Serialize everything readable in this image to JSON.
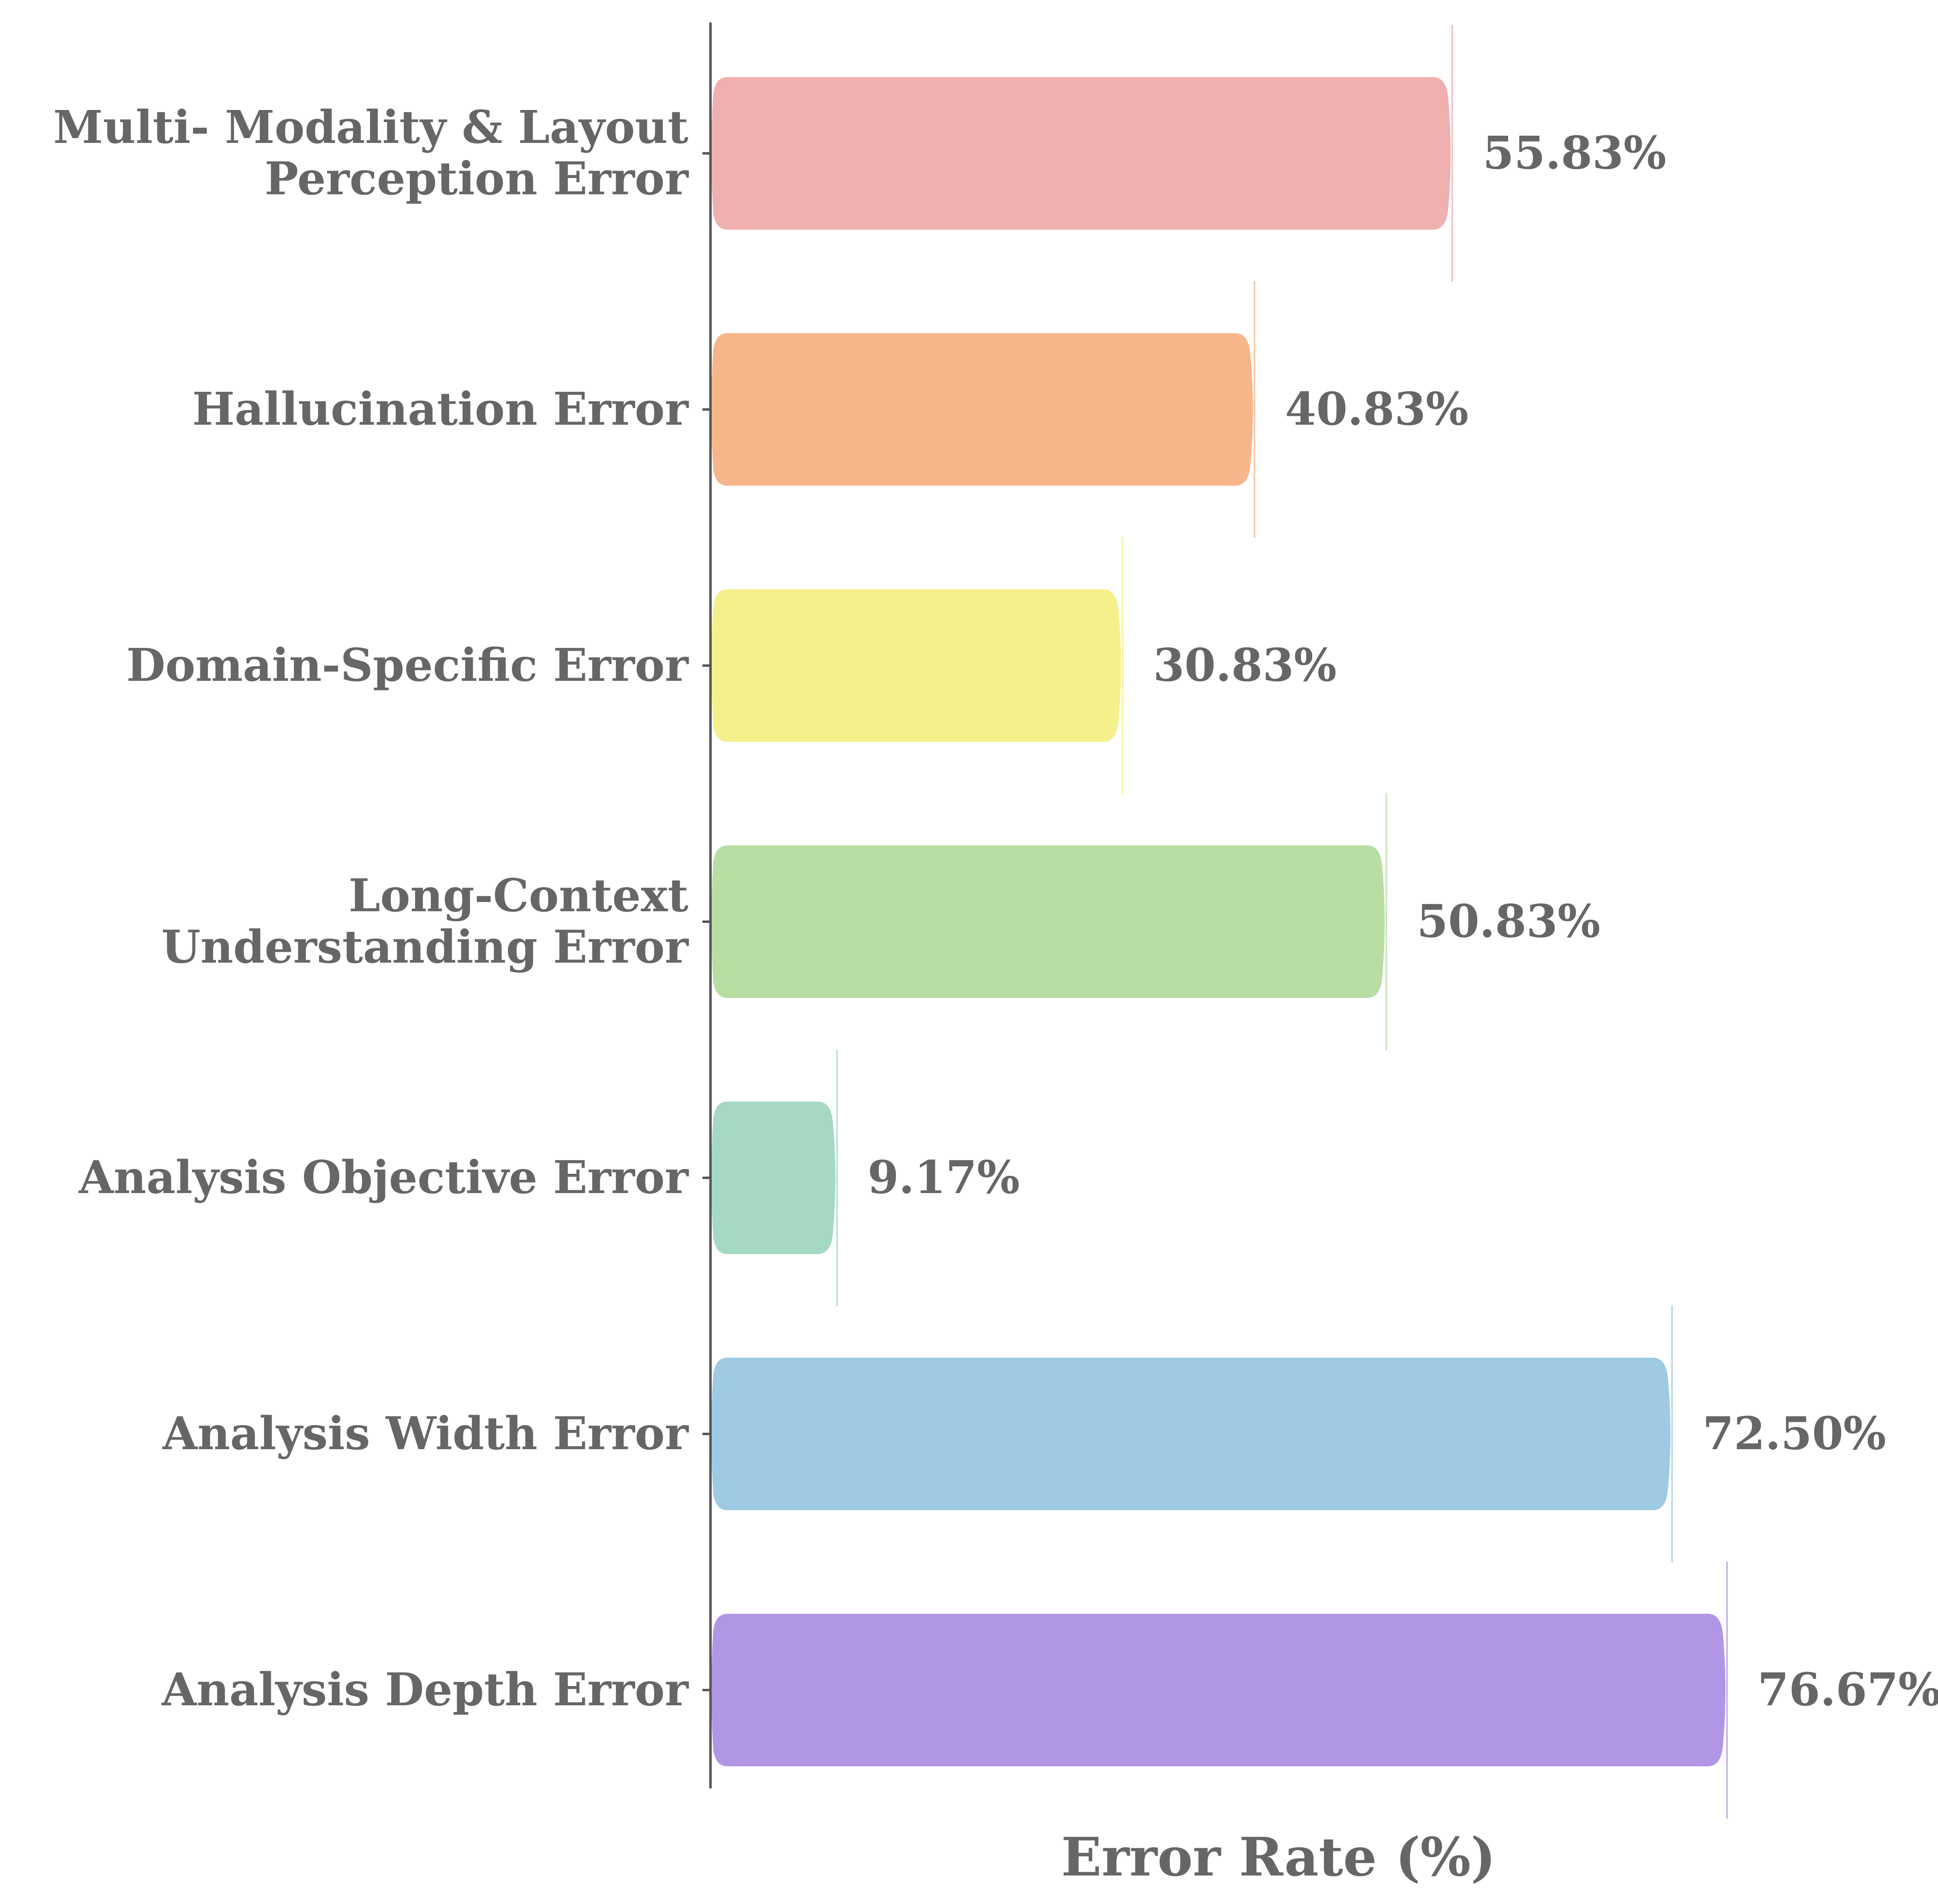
{
  "chart_data": {
    "type": "bar",
    "orientation": "horizontal",
    "title": "",
    "xlabel": "Error Rate (%)",
    "ylabel": "",
    "xlim": [
      0,
      79
    ],
    "value_suffix": "%",
    "categories": [
      "Multi- Modality & Layout\nPerception Error",
      "Hallucination Error",
      "Domain-Specific Error",
      "Long-Context\nUnderstanding Error",
      "Analysis Objective Error",
      "Analysis Width Error",
      "Analysis Depth Error"
    ],
    "values": [
      55.83,
      40.83,
      30.83,
      50.83,
      9.17,
      72.5,
      76.67
    ],
    "value_labels": [
      "55.83%",
      "40.83%",
      "30.83%",
      "50.83%",
      "9.17%",
      "72.50%",
      "76.67%"
    ],
    "colors": [
      "#f0b0b0",
      "#f6b68a",
      "#f4f08c",
      "#b8dea3",
      "#a6d9c4",
      "#9ecae3",
      "#b296e6"
    ],
    "text_color": "#666666",
    "axis_color": "#555555"
  }
}
